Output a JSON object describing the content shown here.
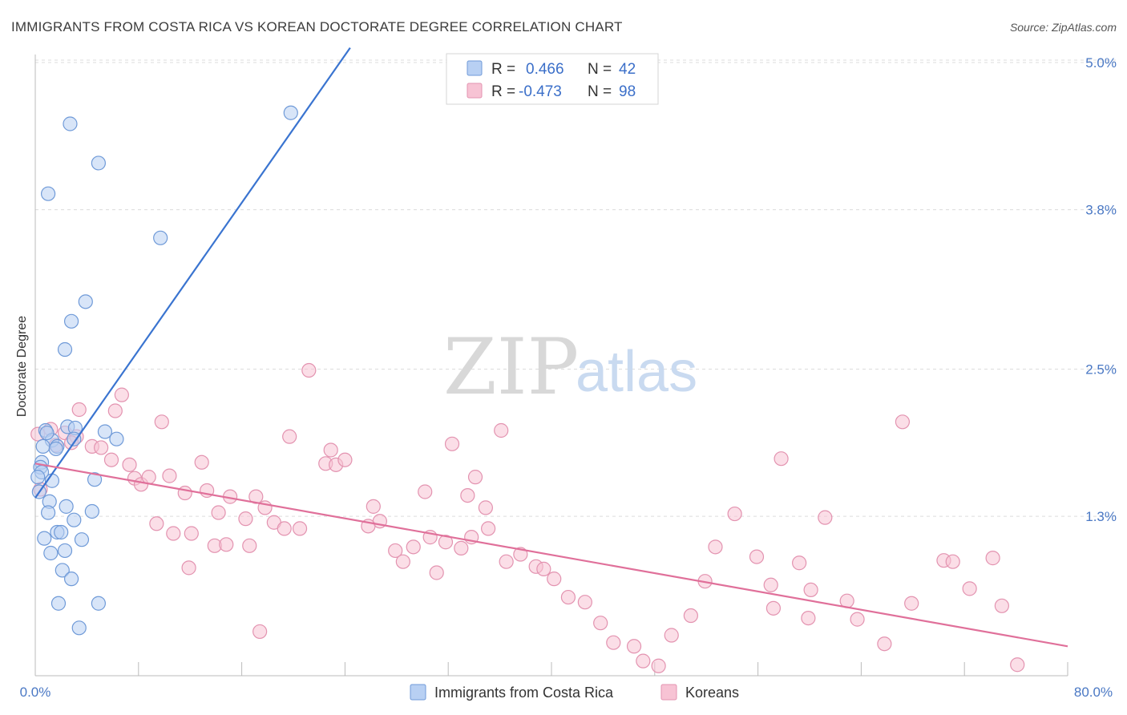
{
  "title": "IMMIGRANTS FROM COSTA RICA VS KOREAN DOCTORATE DEGREE CORRELATION CHART",
  "source": "Source: ZipAtlas.com",
  "watermark": {
    "zip": "ZIP",
    "atlas": "atlas"
  },
  "colors": {
    "blue_fill": "#b8d0f3",
    "blue_stroke": "#6f9ad8",
    "blue_line": "#3a74d0",
    "pink_fill": "#f7c3d4",
    "pink_stroke": "#e393b0",
    "pink_line": "#e0709a"
  },
  "legend": {
    "r_label": "R =",
    "n_label": "N =",
    "series": [
      {
        "r": "0.466",
        "n": "42"
      },
      {
        "r": "-0.473",
        "n": "98"
      }
    ]
  },
  "chart_data": {
    "type": "scatter",
    "title": "IMMIGRANTS FROM COSTA RICA VS KOREAN DOCTORATE DEGREE CORRELATION CHART",
    "ylabel": "Doctorate Degree",
    "xlim": [
      0,
      80
    ],
    "ylim": [
      0,
      5.0
    ],
    "x_tick_labels": [
      "0.0%",
      "80.0%"
    ],
    "y_ticks": [
      {
        "value": 1.3,
        "label": "1.3%"
      },
      {
        "value": 2.5,
        "label": "2.5%"
      },
      {
        "value": 3.8,
        "label": "3.8%"
      },
      {
        "value": 5.0,
        "label": "5.0%"
      }
    ],
    "series": [
      {
        "name": "Immigrants from Costa Rica",
        "color": "blue",
        "trend": {
          "x1": 0.0,
          "y1": 1.45,
          "x2": 24.4,
          "y2": 5.12
        },
        "points": [
          [
            2.7,
            4.5
          ],
          [
            4.9,
            4.18
          ],
          [
            1.0,
            3.93
          ],
          [
            19.8,
            4.59
          ],
          [
            9.7,
            3.57
          ],
          [
            3.9,
            3.05
          ],
          [
            2.8,
            2.89
          ],
          [
            2.3,
            2.66
          ],
          [
            0.8,
            2.0
          ],
          [
            1.3,
            1.92
          ],
          [
            1.7,
            1.87
          ],
          [
            2.5,
            2.03
          ],
          [
            3.1,
            2.02
          ],
          [
            0.6,
            1.87
          ],
          [
            1.6,
            1.85
          ],
          [
            0.5,
            1.74
          ],
          [
            0.4,
            1.7
          ],
          [
            0.5,
            1.66
          ],
          [
            1.3,
            1.59
          ],
          [
            4.6,
            1.6
          ],
          [
            3.0,
            1.93
          ],
          [
            5.4,
            1.99
          ],
          [
            6.3,
            1.93
          ],
          [
            1.1,
            1.42
          ],
          [
            2.4,
            1.38
          ],
          [
            1.0,
            1.33
          ],
          [
            4.4,
            1.34
          ],
          [
            3.0,
            1.27
          ],
          [
            1.7,
            1.17
          ],
          [
            2.0,
            1.17
          ],
          [
            0.7,
            1.12
          ],
          [
            3.6,
            1.11
          ],
          [
            2.3,
            1.02
          ],
          [
            1.2,
            1.0
          ],
          [
            2.1,
            0.86
          ],
          [
            2.8,
            0.79
          ],
          [
            1.8,
            0.59
          ],
          [
            4.9,
            0.59
          ],
          [
            3.4,
            0.39
          ],
          [
            0.3,
            1.5
          ],
          [
            0.2,
            1.62
          ],
          [
            0.9,
            1.98
          ]
        ]
      },
      {
        "name": "Koreans",
        "color": "pink",
        "trend": {
          "x1": 0.0,
          "y1": 1.73,
          "x2": 80.0,
          "y2": 0.24
        },
        "points": [
          [
            0.2,
            1.97
          ],
          [
            0.4,
            1.52
          ],
          [
            1.2,
            2.01
          ],
          [
            2.3,
            1.98
          ],
          [
            3.2,
            1.95
          ],
          [
            1.6,
            1.88
          ],
          [
            2.8,
            1.9
          ],
          [
            3.4,
            2.17
          ],
          [
            4.4,
            1.87
          ],
          [
            5.1,
            1.86
          ],
          [
            5.9,
            1.76
          ],
          [
            6.2,
            2.16
          ],
          [
            6.7,
            2.29
          ],
          [
            7.3,
            1.72
          ],
          [
            7.7,
            1.61
          ],
          [
            8.2,
            1.56
          ],
          [
            8.8,
            1.62
          ],
          [
            9.8,
            2.07
          ],
          [
            10.4,
            1.63
          ],
          [
            11.6,
            1.49
          ],
          [
            12.9,
            1.74
          ],
          [
            13.3,
            1.51
          ],
          [
            14.2,
            1.33
          ],
          [
            15.1,
            1.46
          ],
          [
            16.3,
            1.28
          ],
          [
            17.1,
            1.46
          ],
          [
            17.8,
            1.37
          ],
          [
            18.5,
            1.25
          ],
          [
            19.7,
            1.95
          ],
          [
            19.3,
            1.2
          ],
          [
            20.5,
            1.2
          ],
          [
            21.2,
            2.49
          ],
          [
            22.5,
            1.73
          ],
          [
            22.9,
            1.84
          ],
          [
            23.3,
            1.72
          ],
          [
            24.0,
            1.76
          ],
          [
            26.2,
            1.38
          ],
          [
            26.7,
            1.26
          ],
          [
            25.8,
            1.22
          ],
          [
            27.9,
            1.02
          ],
          [
            29.3,
            1.05
          ],
          [
            30.6,
            1.13
          ],
          [
            31.8,
            1.09
          ],
          [
            32.3,
            1.89
          ],
          [
            33.5,
            1.47
          ],
          [
            34.1,
            1.62
          ],
          [
            34.9,
            1.37
          ],
          [
            36.1,
            2.0
          ],
          [
            33.0,
            1.04
          ],
          [
            33.8,
            1.13
          ],
          [
            31.1,
            0.84
          ],
          [
            30.2,
            1.5
          ],
          [
            28.5,
            0.93
          ],
          [
            35.1,
            1.2
          ],
          [
            36.5,
            0.93
          ],
          [
            37.6,
            0.99
          ],
          [
            38.8,
            0.89
          ],
          [
            39.4,
            0.87
          ],
          [
            40.2,
            0.79
          ],
          [
            41.3,
            0.64
          ],
          [
            42.6,
            0.6
          ],
          [
            43.8,
            0.43
          ],
          [
            44.8,
            0.27
          ],
          [
            46.4,
            0.24
          ],
          [
            47.1,
            0.12
          ],
          [
            48.3,
            0.08
          ],
          [
            49.3,
            0.33
          ],
          [
            50.8,
            0.49
          ],
          [
            51.9,
            0.77
          ],
          [
            52.7,
            1.05
          ],
          [
            54.2,
            1.32
          ],
          [
            55.9,
            0.97
          ],
          [
            57.0,
            0.74
          ],
          [
            57.8,
            1.77
          ],
          [
            59.2,
            0.92
          ],
          [
            60.1,
            0.7
          ],
          [
            61.2,
            1.29
          ],
          [
            62.9,
            0.61
          ],
          [
            63.7,
            0.46
          ],
          [
            65.8,
            0.26
          ],
          [
            67.2,
            2.07
          ],
          [
            67.9,
            0.59
          ],
          [
            70.4,
            0.94
          ],
          [
            71.1,
            0.93
          ],
          [
            72.4,
            0.71
          ],
          [
            74.2,
            0.96
          ],
          [
            76.1,
            0.09
          ],
          [
            74.9,
            0.57
          ],
          [
            59.9,
            0.47
          ],
          [
            57.2,
            0.55
          ],
          [
            11.9,
            0.88
          ],
          [
            13.9,
            1.06
          ],
          [
            16.6,
            1.06
          ],
          [
            17.4,
            0.36
          ],
          [
            9.4,
            1.24
          ],
          [
            10.7,
            1.16
          ],
          [
            12.1,
            1.16
          ],
          [
            14.8,
            1.07
          ]
        ]
      }
    ]
  }
}
